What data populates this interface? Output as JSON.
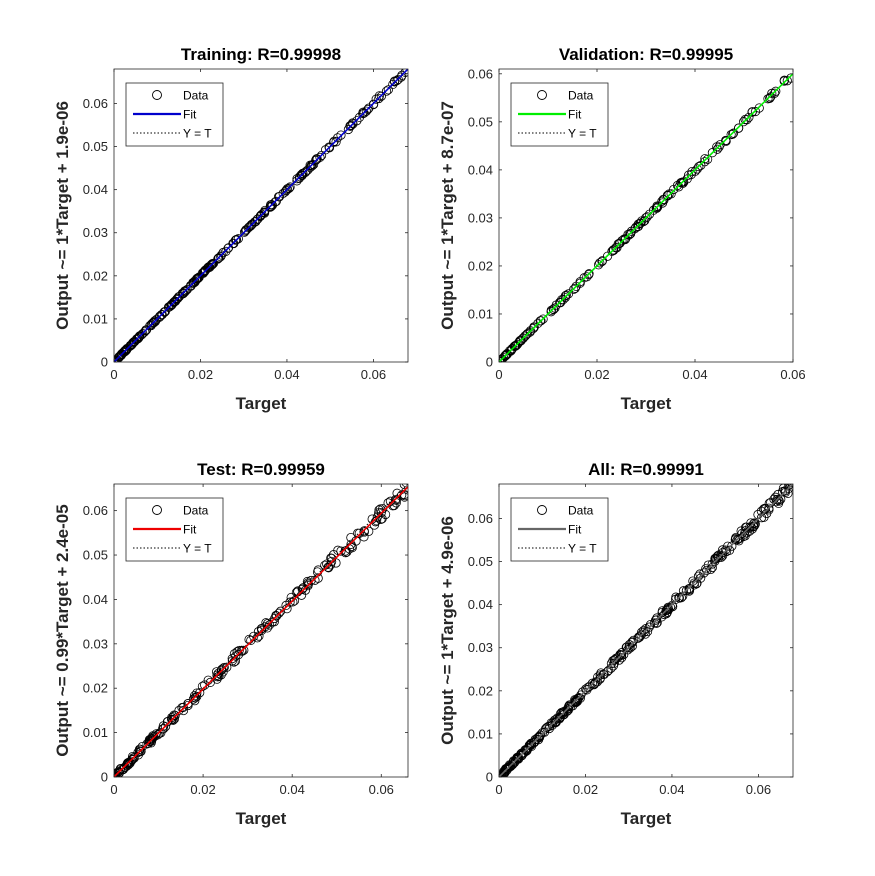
{
  "chart_data": [
    {
      "type": "scatter",
      "title": "Training: R=0.99998",
      "xlabel": "Target",
      "ylabel": "Output ~= 1*Target + 1.9e-06",
      "xlim": [
        0,
        0.068
      ],
      "ylim": [
        0,
        0.068
      ],
      "xticks": [
        "0",
        "0.02",
        "0.04",
        "0.06"
      ],
      "xtick_values": [
        0,
        0.02,
        0.04,
        0.06
      ],
      "yticks": [
        "0",
        "0.01",
        "0.02",
        "0.03",
        "0.04",
        "0.05",
        "0.06"
      ],
      "ytick_values": [
        0,
        0.01,
        0.02,
        0.03,
        0.04,
        0.05,
        0.06
      ],
      "fit": {
        "slope": 1.0,
        "intercept": 1.9e-06,
        "color": "#0000cc"
      },
      "legend": [
        "Data",
        "Fit",
        "Y = T"
      ],
      "legend_position": "top-left",
      "data_range": [
        0,
        0.068
      ],
      "scatter_spread": 0.0003,
      "point_count": 260,
      "seed": 11
    },
    {
      "type": "scatter",
      "title": "Validation: R=0.99995",
      "xlabel": "Target",
      "ylabel": "Output ~= 1*Target + 8.7e-07",
      "xlim": [
        0,
        0.06
      ],
      "ylim": [
        0,
        0.061
      ],
      "xticks": [
        "0",
        "0.02",
        "0.04",
        "0.06"
      ],
      "xtick_values": [
        0,
        0.02,
        0.04,
        0.06
      ],
      "yticks": [
        "0",
        "0.01",
        "0.02",
        "0.03",
        "0.04",
        "0.05",
        "0.06"
      ],
      "ytick_values": [
        0,
        0.01,
        0.02,
        0.03,
        0.04,
        0.05,
        0.06
      ],
      "fit": {
        "slope": 1.0,
        "intercept": 8.7e-07,
        "color": "#00ee00"
      },
      "legend": [
        "Data",
        "Fit",
        "Y = T"
      ],
      "legend_position": "top-left",
      "data_range": [
        0,
        0.06
      ],
      "scatter_spread": 0.00035,
      "point_count": 170,
      "seed": 23
    },
    {
      "type": "scatter",
      "title": "Test: R=0.99959",
      "xlabel": "Target",
      "ylabel": "Output ~= 0.99*Target + 2.4e-05",
      "xlim": [
        0,
        0.066
      ],
      "ylim": [
        0,
        0.066
      ],
      "xticks": [
        "0",
        "0.02",
        "0.04",
        "0.06"
      ],
      "xtick_values": [
        0,
        0.02,
        0.04,
        0.06
      ],
      "yticks": [
        "0",
        "0.01",
        "0.02",
        "0.03",
        "0.04",
        "0.05",
        "0.06"
      ],
      "ytick_values": [
        0,
        0.01,
        0.02,
        0.03,
        0.04,
        0.05,
        0.06
      ],
      "fit": {
        "slope": 0.99,
        "intercept": 2.4e-05,
        "color": "#ee0000"
      },
      "legend": [
        "Data",
        "Fit",
        "Y = T"
      ],
      "legend_position": "top-left",
      "data_range": [
        0,
        0.066
      ],
      "scatter_spread": 0.0012,
      "point_count": 220,
      "seed": 37
    },
    {
      "type": "scatter",
      "title": "All: R=0.99991",
      "xlabel": "Target",
      "ylabel": "Output ~= 1*Target + 4.9e-06",
      "xlim": [
        0,
        0.068
      ],
      "ylim": [
        0,
        0.068
      ],
      "xticks": [
        "0",
        "0.02",
        "0.04",
        "0.06"
      ],
      "xtick_values": [
        0,
        0.02,
        0.04,
        0.06
      ],
      "yticks": [
        "0",
        "0.01",
        "0.02",
        "0.03",
        "0.04",
        "0.05",
        "0.06"
      ],
      "ytick_values": [
        0,
        0.01,
        0.02,
        0.03,
        0.04,
        0.05,
        0.06
      ],
      "fit": {
        "slope": 1.0,
        "intercept": 4.9e-06,
        "color": "#666666"
      },
      "legend": [
        "Data",
        "Fit",
        "Y = T"
      ],
      "legend_position": "top-left",
      "data_range": [
        0,
        0.068
      ],
      "scatter_spread": 0.0009,
      "point_count": 320,
      "seed": 53
    }
  ]
}
